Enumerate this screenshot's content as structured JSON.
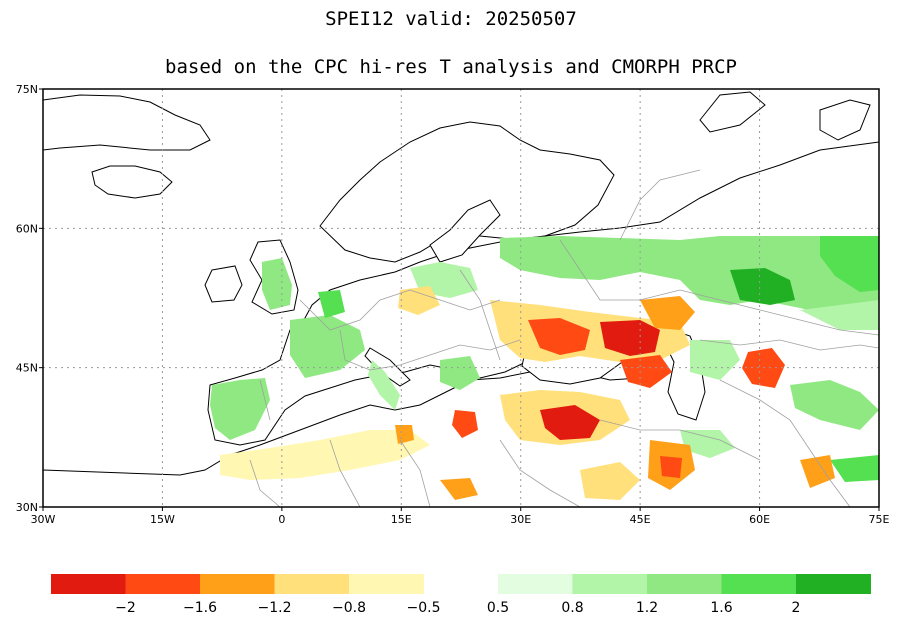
{
  "title": "SPEI12  valid: 20250507",
  "subtitle": "based on the CPC hi-res T analysis and CMORPH PRCP",
  "map": {
    "lon_range": [
      -30,
      75
    ],
    "lat_range": [
      30,
      75
    ],
    "lat_ticks": [
      {
        "value": 75,
        "label": "75N"
      },
      {
        "value": 60,
        "label": "60N"
      },
      {
        "value": 45,
        "label": "45N"
      },
      {
        "value": 30,
        "label": "30N"
      }
    ],
    "lon_ticks": [
      {
        "value": -30,
        "label": "30W"
      },
      {
        "value": -15,
        "label": "15W"
      },
      {
        "value": 0,
        "label": "0"
      },
      {
        "value": 15,
        "label": "15E"
      },
      {
        "value": 30,
        "label": "30E"
      },
      {
        "value": 45,
        "label": "45E"
      },
      {
        "value": 60,
        "label": "60E"
      },
      {
        "value": 75,
        "label": "75E"
      }
    ],
    "grid": true,
    "colors": {
      "land_outline": "#000000",
      "borders": "#a0a0a0",
      "ocean": "#ffffff",
      "no_data_land": "#ffffff"
    }
  },
  "colorbar": {
    "dry_colors": [
      "#e11b0f",
      "#ff4a14",
      "#ffa018",
      "#ffe07a",
      "#fff7b2"
    ],
    "wet_colors": [
      "#e2fde0",
      "#b2f4a8",
      "#8fe882",
      "#54e050",
      "#21b023"
    ],
    "labels": [
      {
        "text": "−2"
      },
      {
        "text": "−1.6"
      },
      {
        "text": "−1.2"
      },
      {
        "text": "−0.8"
      },
      {
        "text": "−0.5"
      },
      {
        "text": "0.5"
      },
      {
        "text": "0.8"
      },
      {
        "text": "1.2"
      },
      {
        "text": "1.6"
      },
      {
        "text": "2"
      }
    ]
  }
}
